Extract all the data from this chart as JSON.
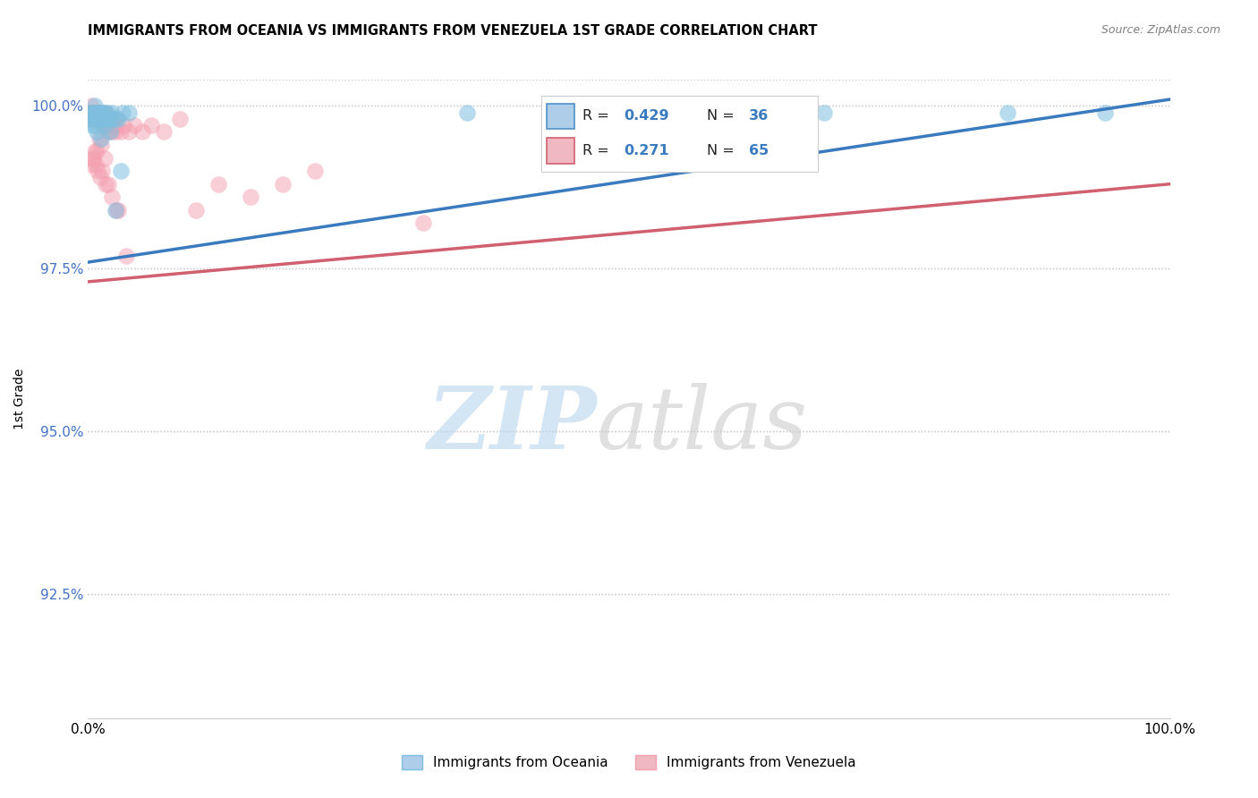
{
  "title": "IMMIGRANTS FROM OCEANIA VS IMMIGRANTS FROM VENEZUELA 1ST GRADE CORRELATION CHART",
  "source": "Source: ZipAtlas.com",
  "ylabel": "1st Grade",
  "xlim": [
    0,
    1.0
  ],
  "ylim": [
    0.906,
    1.004
  ],
  "xticks": [
    0.0,
    0.1,
    0.2,
    0.3,
    0.4,
    0.5,
    0.6,
    0.7,
    0.8,
    0.9,
    1.0
  ],
  "yticks": [
    0.925,
    0.95,
    0.975,
    1.0
  ],
  "ytick_labels": [
    "92.5%",
    "95.0%",
    "97.5%",
    "100.0%"
  ],
  "xtick_labels": [
    "0.0%",
    "",
    "",
    "",
    "",
    "",
    "",
    "",
    "",
    "",
    "100.0%"
  ],
  "series1_name": "Immigrants from Oceania",
  "series1_color": "#7fbfdf",
  "series1_R": 0.429,
  "series1_N": 36,
  "series2_name": "Immigrants from Venezuela",
  "series2_color": "#f4a0b0",
  "series2_R": 0.271,
  "series2_N": 65,
  "line1_color": "#3a7bbf",
  "line2_color": "#d06070",
  "line1_x0": 0.0,
  "line1_y0": 0.976,
  "line1_x1": 1.0,
  "line1_y1": 1.001,
  "line2_x0": 0.0,
  "line2_y0": 0.973,
  "line2_x1": 1.0,
  "line2_y1": 0.988,
  "oceania_x": [
    0.001,
    0.002,
    0.003,
    0.004,
    0.005,
    0.006,
    0.007,
    0.008,
    0.009,
    0.01,
    0.011,
    0.012,
    0.013,
    0.014,
    0.015,
    0.016,
    0.017,
    0.018,
    0.02,
    0.022,
    0.025,
    0.028,
    0.032,
    0.038,
    0.015,
    0.012,
    0.008,
    0.006,
    0.004,
    0.02,
    0.025,
    0.03,
    0.35,
    0.68,
    0.85,
    0.94
  ],
  "oceania_y": [
    0.998,
    0.999,
    0.999,
    0.998,
    0.999,
    1.0,
    0.999,
    0.998,
    0.999,
    0.998,
    0.999,
    0.998,
    0.999,
    0.999,
    0.998,
    0.999,
    0.998,
    0.999,
    0.998,
    0.999,
    0.998,
    0.998,
    0.999,
    0.999,
    0.997,
    0.995,
    0.996,
    0.997,
    0.997,
    0.996,
    0.984,
    0.99,
    0.999,
    0.999,
    0.999,
    0.999
  ],
  "venezuela_x": [
    0.001,
    0.002,
    0.003,
    0.003,
    0.004,
    0.004,
    0.005,
    0.005,
    0.006,
    0.007,
    0.007,
    0.008,
    0.008,
    0.009,
    0.009,
    0.01,
    0.011,
    0.012,
    0.013,
    0.014,
    0.015,
    0.015,
    0.016,
    0.017,
    0.018,
    0.019,
    0.02,
    0.021,
    0.022,
    0.023,
    0.024,
    0.025,
    0.027,
    0.03,
    0.033,
    0.038,
    0.043,
    0.05,
    0.058,
    0.07,
    0.085,
    0.1,
    0.12,
    0.15,
    0.18,
    0.21,
    0.01,
    0.012,
    0.015,
    0.008,
    0.006,
    0.005,
    0.004,
    0.003,
    0.007,
    0.009,
    0.011,
    0.013,
    0.016,
    0.019,
    0.022,
    0.026,
    0.31,
    0.028,
    0.035
  ],
  "venezuela_y": [
    0.999,
    0.998,
    1.0,
    0.999,
    0.998,
    0.999,
    0.999,
    0.998,
    0.999,
    0.998,
    0.999,
    0.999,
    0.998,
    0.999,
    0.998,
    0.999,
    0.998,
    0.999,
    0.997,
    0.998,
    0.997,
    0.999,
    0.998,
    0.997,
    0.998,
    0.996,
    0.997,
    0.998,
    0.996,
    0.997,
    0.998,
    0.996,
    0.997,
    0.996,
    0.997,
    0.996,
    0.997,
    0.996,
    0.997,
    0.996,
    0.998,
    0.984,
    0.988,
    0.986,
    0.988,
    0.99,
    0.995,
    0.994,
    0.992,
    0.993,
    0.993,
    0.992,
    0.992,
    0.991,
    0.991,
    0.99,
    0.989,
    0.99,
    0.988,
    0.988,
    0.986,
    0.984,
    0.982,
    0.984,
    0.977
  ]
}
